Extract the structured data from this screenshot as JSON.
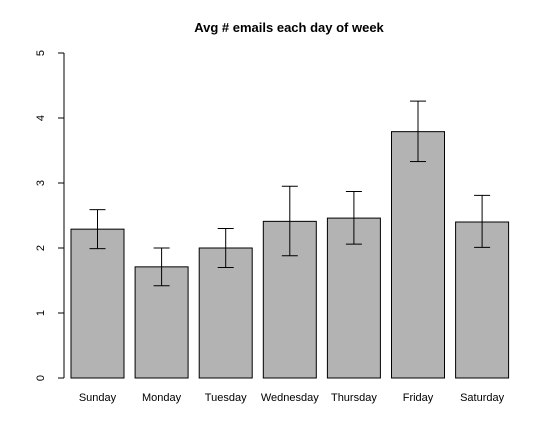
{
  "chart_data": {
    "type": "bar",
    "title": "Avg # emails each day of week",
    "xlabel": "",
    "ylabel": "",
    "categories": [
      "Sunday",
      "Monday",
      "Tuesday",
      "Wednesday",
      "Thursday",
      "Friday",
      "Saturday"
    ],
    "values": [
      2.29,
      1.71,
      2.0,
      2.41,
      2.46,
      3.79,
      2.4
    ],
    "error_low": [
      1.99,
      1.42,
      1.7,
      1.88,
      2.06,
      3.33,
      2.01
    ],
    "error_high": [
      2.59,
      2.0,
      2.3,
      2.95,
      2.87,
      4.26,
      2.81
    ],
    "ylim": [
      0,
      5
    ],
    "y_ticks": [
      0,
      1,
      2,
      3,
      4,
      5
    ],
    "grid": false,
    "legend": "none",
    "bar_color": "#b3b3b3",
    "edge_color": "#000000"
  }
}
